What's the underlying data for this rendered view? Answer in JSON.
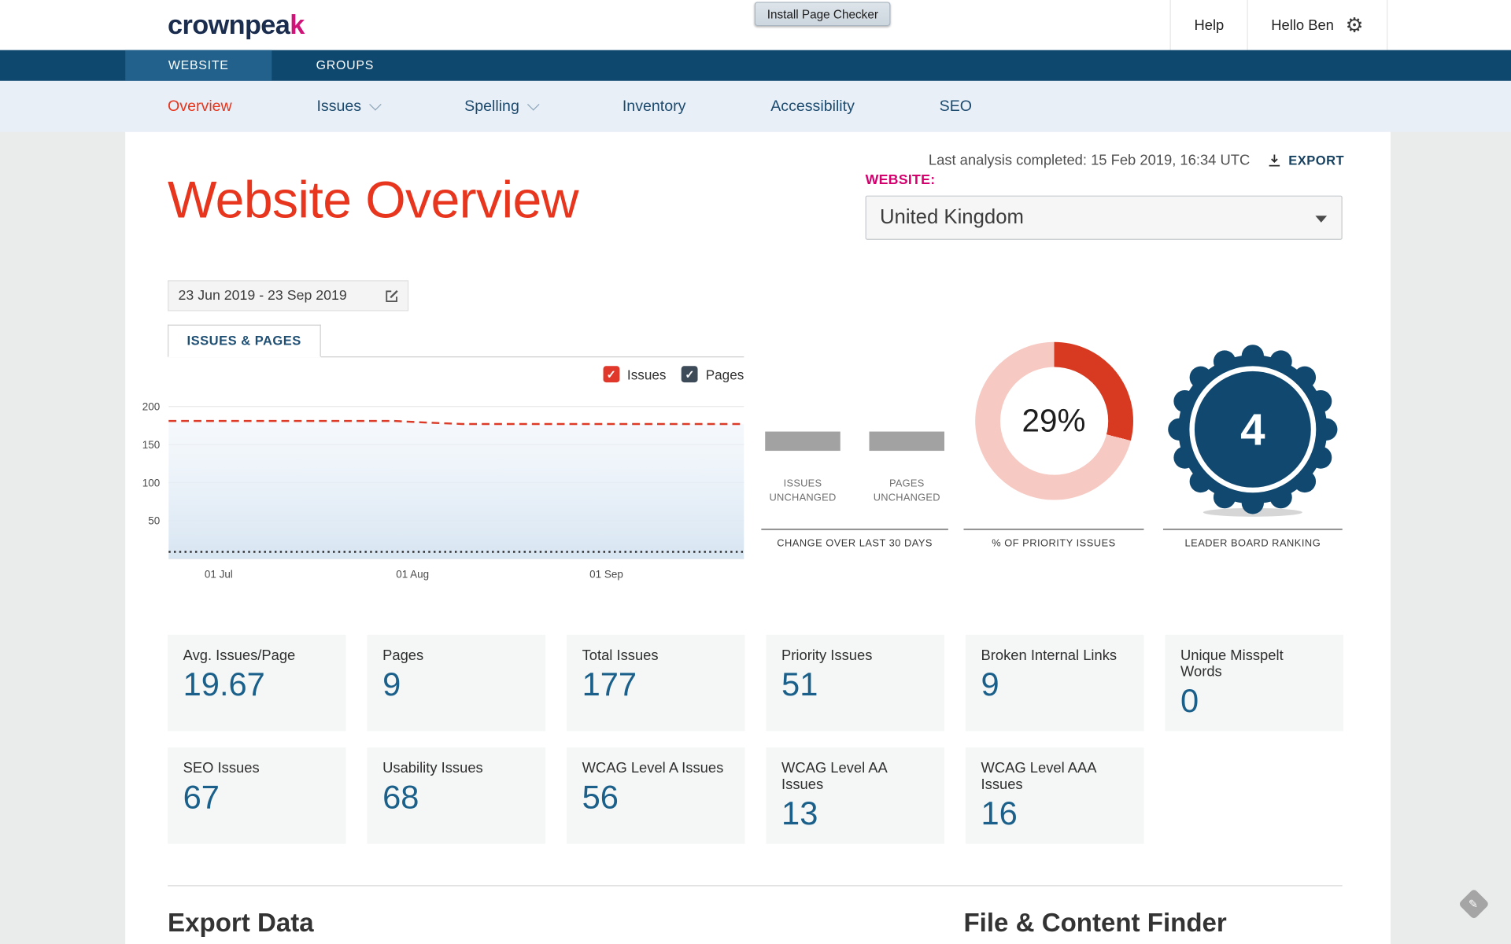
{
  "header": {
    "logo_main": "crownpea",
    "logo_accent": "k",
    "install_button": "Install Page Checker",
    "help": "Help",
    "greeting": "Hello Ben"
  },
  "primary_nav": {
    "tabs": [
      {
        "label": "WEBSITE",
        "active": true
      },
      {
        "label": "GROUPS",
        "active": false
      }
    ]
  },
  "secondary_nav": {
    "items": [
      {
        "label": "Overview",
        "active": true
      },
      {
        "label": "Issues",
        "dropdown": true
      },
      {
        "label": "Spelling",
        "dropdown": true
      },
      {
        "label": "Inventory"
      },
      {
        "label": "Accessibility"
      },
      {
        "label": "SEO"
      }
    ]
  },
  "overview": {
    "title": "Website Overview",
    "last_analysis": "Last analysis completed: 15 Feb 2019, 16:34 UTC",
    "export_label": "EXPORT",
    "website_label": "WEBSITE:",
    "website_value": "United Kingdom",
    "date_range": "23 Jun 2019 - 23 Sep 2019",
    "chart_tab": "ISSUES & PAGES",
    "legend": [
      {
        "label": "Issues",
        "color": "#e0392b"
      },
      {
        "label": "Pages",
        "color": "#3d4b59"
      }
    ]
  },
  "chart_data": {
    "type": "line",
    "title": "Issues & Pages",
    "grid": true,
    "legend_position": "top-right",
    "x_axis": {
      "start": "23 Jun 2019",
      "end": "23 Sep 2019",
      "range_days": 92,
      "tick_labels": [
        "01 Jul",
        "01 Aug",
        "01 Sep"
      ],
      "tick_day_offsets": [
        8,
        39,
        70
      ]
    },
    "y_axis": {
      "min": 0,
      "grid_max": 200,
      "ticks": [
        50,
        100,
        150,
        200
      ]
    },
    "series": [
      {
        "name": "Issues",
        "color": "#dd3a27",
        "style": "dashed",
        "area": true,
        "points": [
          {
            "day": 0,
            "value": 181
          },
          {
            "day": 36,
            "value": 181
          },
          {
            "day": 41,
            "value": 179
          },
          {
            "day": 47,
            "value": 177
          },
          {
            "day": 92,
            "value": 177
          }
        ]
      },
      {
        "name": "Pages",
        "color": "#2f2f2f",
        "style": "dotted",
        "area": false,
        "points": [
          {
            "day": 0,
            "value": 9
          },
          {
            "day": 92,
            "value": 9
          }
        ]
      }
    ]
  },
  "change_panel": {
    "bar_color": "#a2a2a2",
    "items": [
      {
        "line1": "ISSUES",
        "line2": "UNCHANGED"
      },
      {
        "line1": "PAGES",
        "line2": "UNCHANGED"
      }
    ],
    "caption": "CHANGE OVER LAST 30 DAYS"
  },
  "donut": {
    "value_label": "29%",
    "percent": 29,
    "color": "#d73a21",
    "track_color": "#f6c9c2",
    "caption": "% OF PRIORITY ISSUES"
  },
  "leaderboard": {
    "rank": "4",
    "badge_color": "#11486f",
    "caption": "LEADER BOARD RANKING"
  },
  "stats": [
    {
      "label": "Avg. Issues/Page",
      "value": "19.67"
    },
    {
      "label": "Pages",
      "value": "9"
    },
    {
      "label": "Total Issues",
      "value": "177"
    },
    {
      "label": "Priority Issues",
      "value": "51"
    },
    {
      "label": "Broken Internal Links",
      "value": "9"
    },
    {
      "label": "Unique Misspelt Words",
      "value": "0"
    },
    {
      "label": "SEO Issues",
      "value": "67"
    },
    {
      "label": "Usability Issues",
      "value": "68"
    },
    {
      "label": "WCAG Level A Issues",
      "value": "56"
    },
    {
      "label": "WCAG Level AA Issues",
      "value": "13"
    },
    {
      "label": "WCAG Level AAA Issues",
      "value": "16"
    }
  ],
  "footer": {
    "left_title": "Export Data",
    "right_title": "File & Content Finder"
  },
  "colors": {
    "accent_red": "#e8351d",
    "accent_magenta": "#d4006e",
    "navy": "#0e486f",
    "stat_number": "#1a608a"
  }
}
